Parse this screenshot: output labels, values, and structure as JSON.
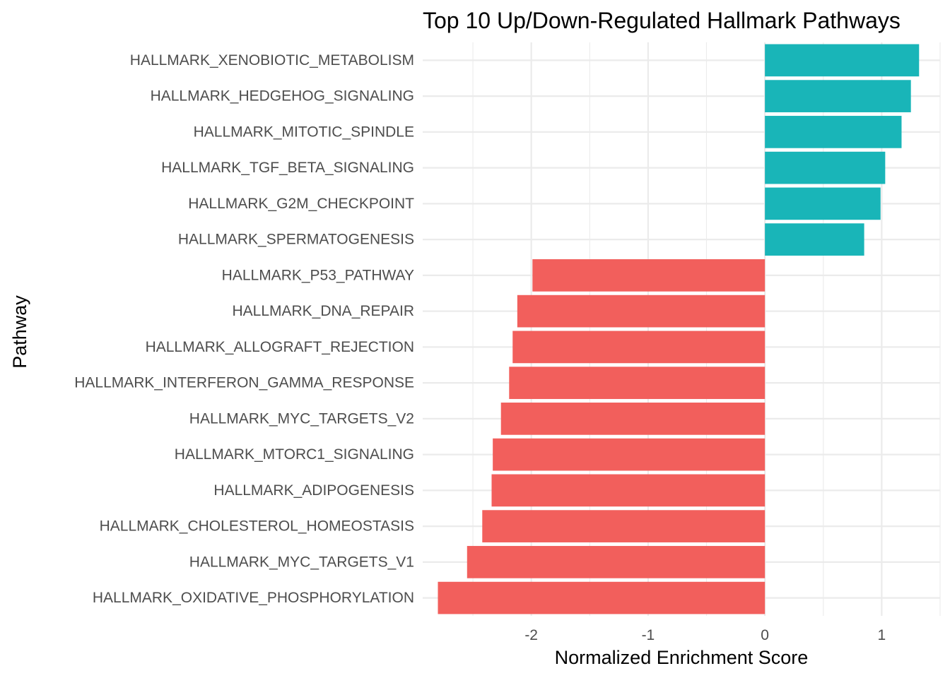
{
  "chart_data": {
    "type": "bar",
    "orientation": "horizontal",
    "title": "Top 10 Up/Down-Regulated Hallmark Pathways",
    "xlabel": "Normalized Enrichment Score",
    "ylabel": "Pathway",
    "xlim": [
      -2.93,
      1.5
    ],
    "x_ticks": [
      -2,
      -1,
      0,
      1
    ],
    "x_tick_labels": [
      "-2",
      "-1",
      "0",
      "1"
    ],
    "grid": true,
    "legend": "none",
    "colors": {
      "up": "#19b5b8",
      "down": "#f25f5c",
      "grid": "#ebebeb"
    },
    "categories": [
      "HALLMARK_XENOBIOTIC_METABOLISM",
      "HALLMARK_HEDGEHOG_SIGNALING",
      "HALLMARK_MITOTIC_SPINDLE",
      "HALLMARK_TGF_BETA_SIGNALING",
      "HALLMARK_G2M_CHECKPOINT",
      "HALLMARK_SPERMATOGENESIS",
      "HALLMARK_P53_PATHWAY",
      "HALLMARK_DNA_REPAIR",
      "HALLMARK_ALLOGRAFT_REJECTION",
      "HALLMARK_INTERFERON_GAMMA_RESPONSE",
      "HALLMARK_MYC_TARGETS_V2",
      "HALLMARK_MTORC1_SIGNALING",
      "HALLMARK_ADIPOGENESIS",
      "HALLMARK_CHOLESTEROL_HOMEOSTASIS",
      "HALLMARK_MYC_TARGETS_V1",
      "HALLMARK_OXIDATIVE_PHOSPHORYLATION"
    ],
    "values": [
      1.32,
      1.25,
      1.17,
      1.03,
      0.99,
      0.85,
      -1.99,
      -2.12,
      -2.16,
      -2.19,
      -2.26,
      -2.33,
      -2.34,
      -2.42,
      -2.55,
      -2.8
    ]
  }
}
